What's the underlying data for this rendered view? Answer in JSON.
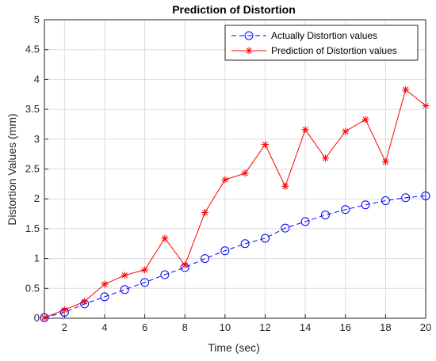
{
  "chart_data": {
    "type": "line",
    "title": "Prediction of Distortion",
    "xlabel": "Time (sec)",
    "ylabel": "Distortion Values (mm)",
    "xlim": [
      1,
      20
    ],
    "ylim": [
      0,
      5
    ],
    "xticks": [
      "2",
      "4",
      "6",
      "8",
      "10",
      "12",
      "14",
      "16",
      "18",
      "20"
    ],
    "yticks": [
      "0",
      "0.5",
      "1",
      "1.5",
      "2",
      "2.5",
      "3",
      "3.5",
      "4",
      "4.5",
      "5"
    ],
    "grid": true,
    "legend_position": "top-right",
    "x": [
      1,
      2,
      3,
      4,
      5,
      6,
      7,
      8,
      9,
      10,
      11,
      12,
      13,
      14,
      15,
      16,
      17,
      18,
      19,
      20
    ],
    "series": [
      {
        "name": "Actually Distortion values",
        "color": "#0000ff",
        "line_style": "dashed",
        "marker": "circle",
        "values": [
          0.01,
          0.1,
          0.24,
          0.36,
          0.48,
          0.6,
          0.73,
          0.85,
          1.0,
          1.13,
          1.25,
          1.34,
          1.51,
          1.62,
          1.73,
          1.82,
          1.9,
          1.97,
          2.02,
          2.05
        ]
      },
      {
        "name": "Prediction of Distortion values",
        "color": "#ff0000",
        "line_style": "solid",
        "marker": "asterisk",
        "values": [
          0.01,
          0.14,
          0.28,
          0.57,
          0.72,
          0.81,
          1.34,
          0.89,
          1.77,
          2.32,
          2.43,
          2.91,
          2.21,
          3.16,
          2.68,
          3.13,
          3.33,
          2.62,
          3.83,
          3.56
        ]
      }
    ]
  }
}
